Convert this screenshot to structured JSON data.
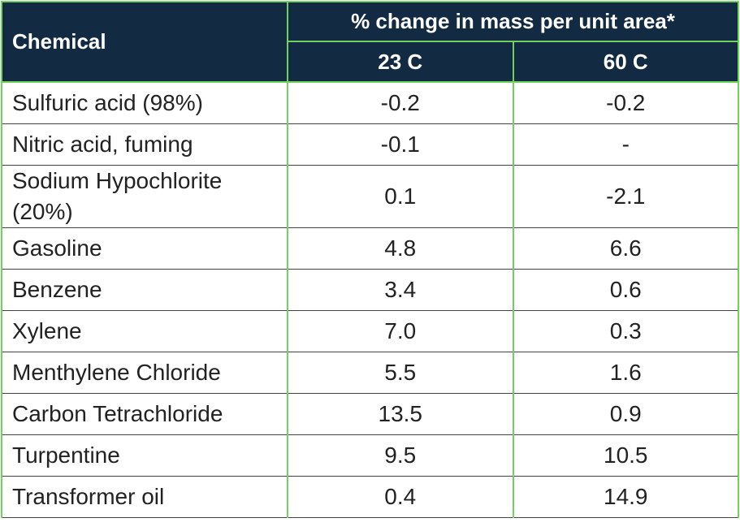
{
  "header": {
    "chemical": "Chemical",
    "group": "% change in mass per unit area*",
    "columns": [
      "23 C",
      "60 C"
    ]
  },
  "table": {
    "rows": [
      [
        "Sulfuric acid (98%)",
        "-0.2",
        "-0.2"
      ],
      [
        "Nitric acid, fuming",
        "-0.1",
        "-"
      ],
      [
        "Sodium Hypochlorite (20%)",
        "0.1",
        "-2.1"
      ],
      [
        "Gasoline",
        "4.8",
        "6.6"
      ],
      [
        "Benzene",
        "3.4",
        "0.6"
      ],
      [
        "Xylene",
        "7.0",
        "0.3"
      ],
      [
        "Menthylene Chloride",
        "5.5",
        "1.6"
      ],
      [
        "Carbon Tetrachloride",
        "13.5",
        "0.9"
      ],
      [
        "Turpentine",
        "9.5",
        "10.5"
      ],
      [
        "Transformer oil",
        "0.4",
        "14.9"
      ]
    ]
  }
}
